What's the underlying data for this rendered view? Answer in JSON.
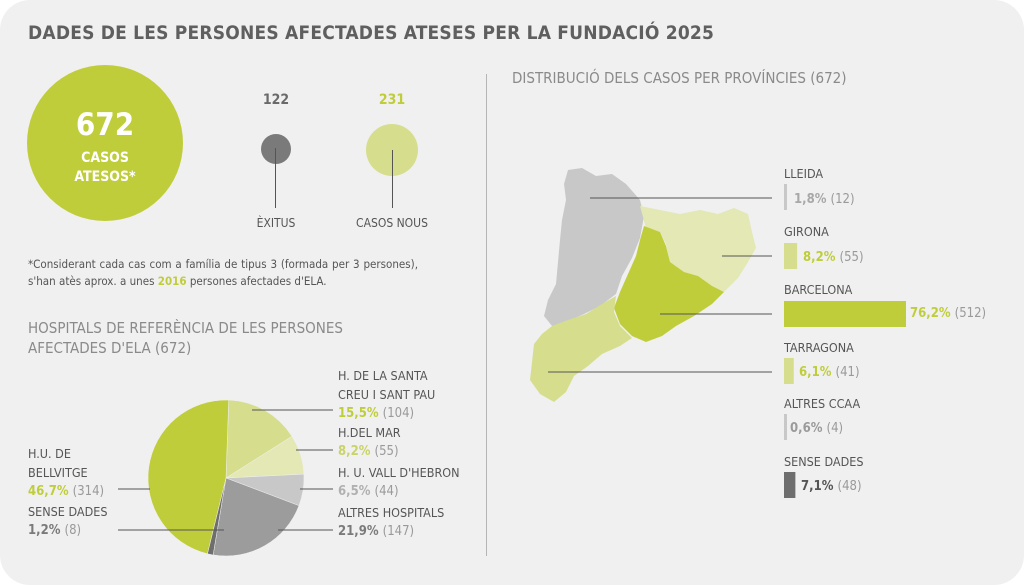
{
  "title": "DADES DE LES PERSONES AFECTADES ATESES PER LA FUNDACIÓ 2025",
  "summary": {
    "total_number": "672",
    "total_label_1": "CASOS",
    "total_label_2": "ATESOS*",
    "deaths_count": "122",
    "deaths_label": "ÈXITUS",
    "new_count": "231",
    "new_label": "CASOS NOUS",
    "note_prefix": "*Considerant cada cas com a família de tipus 3 (formada per 3 persones), s'han atès aprox. a unes ",
    "note_value": "2016",
    "note_suffix": " persones afectades d'ELA."
  },
  "colors": {
    "accent": "#c0cd3b",
    "light_green": "#d6de8e",
    "pale_green": "#e3e8b5",
    "light_gray": "#c8c8c8",
    "mid_gray": "#9c9c9c",
    "dark_gray": "#6e6e6e"
  },
  "chart_data": [
    {
      "type": "pie",
      "title_line1": "HOSPITALS DE REFERÈNCIA DE LES PERSONES",
      "title_line2": "AFECTADES D'ELA (672)",
      "slices": [
        {
          "name_line1": "H. DE LA SANTA",
          "name_line2": "CREU I SANT PAU",
          "percent_label": "15,5%",
          "count_label": "(104)",
          "value": 104,
          "color": "#d6de8e"
        },
        {
          "name_line1": "H.DEL MAR",
          "name_line2": "",
          "percent_label": "8,2%",
          "count_label": "(55)",
          "value": 55,
          "color": "#e3e8b5"
        },
        {
          "name_line1": "H. U. VALL D'HEBRON",
          "name_line2": "",
          "percent_label": "6,5%",
          "count_label": "(44)",
          "value": 44,
          "color": "#c8c8c8"
        },
        {
          "name_line1": "ALTRES HOSPITALS",
          "name_line2": "",
          "percent_label": "21,9%",
          "count_label": "(147)",
          "value": 147,
          "color": "#9c9c9c"
        },
        {
          "name_line1": "SENSE DADES",
          "name_line2": "",
          "percent_label": "1,2%",
          "count_label": "(8)",
          "value": 8,
          "color": "#6e6e6e"
        },
        {
          "name_line1": "H.U. DE",
          "name_line2": "BELLVITGE",
          "percent_label": "46,7%",
          "count_label": "(314)",
          "value": 314,
          "color": "#c0cd3b"
        }
      ]
    },
    {
      "type": "bar",
      "title": "DISTRIBUCIÓ DELS CASOS PER PROVÍNCIES (672)",
      "categories": [
        "LLEIDA",
        "GIRONA",
        "BARCELONA",
        "TARRAGONA",
        "ALTRES CCAA",
        "SENSE DADES"
      ],
      "values": [
        1.8,
        8.2,
        76.2,
        6.1,
        0.6,
        7.1
      ],
      "percent_labels": [
        "1,8%",
        "8,2%",
        "76,2%",
        "6,1%",
        "0,6%",
        "7,1%"
      ],
      "count_labels": [
        "(12)",
        "(55)",
        "(512)",
        "(41)",
        "(4)",
        "(48)"
      ],
      "colors": [
        "#c8c8c8",
        "#d6de8e",
        "#c0cd3b",
        "#d6de8e",
        "#c8c8c8",
        "#6e6e6e"
      ],
      "label_colors": [
        "#a8a8a8",
        "#c0cd3b",
        "#c0cd3b",
        "#c0cd3b",
        "#9a9a9a",
        "#555555"
      ]
    }
  ]
}
